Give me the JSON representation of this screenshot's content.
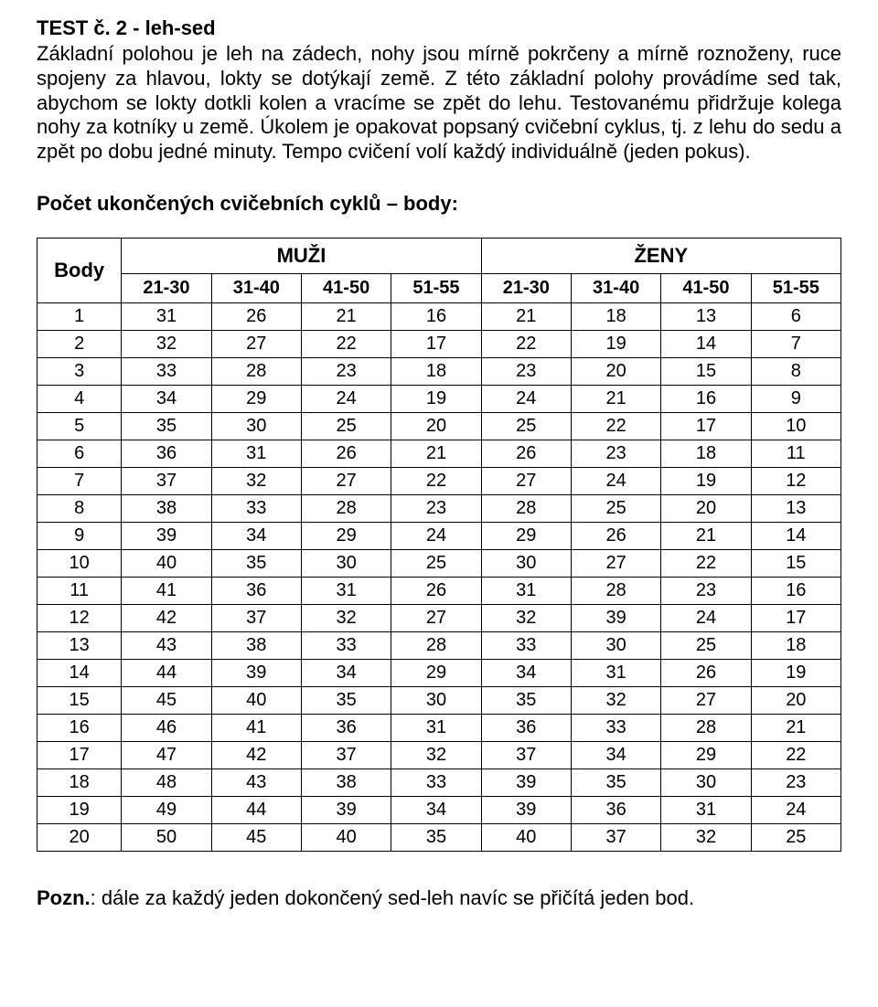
{
  "title": "TEST č. 2 - leh-sed",
  "paragraph": "Základní polohou je leh na zádech, nohy jsou mírně pokrčeny a mírně roznoženy, ruce spojeny za hlavou, lokty se dotýkají země. Z této základní polohy provádíme sed tak, abychom se lokty dotkli kolen a vracíme se zpět do lehu. Testovanému přidržuje kolega nohy za kotníky u země. Úkolem je opakovat popsaný cvičební cyklus, tj. z lehu do sedu a zpět po dobu jedné minuty. Tempo cvičení volí každý individuálně (jeden pokus).",
  "subheading": "Počet ukončených cvičebních cyklů – body:",
  "table": {
    "body_label": "Body",
    "group_headers": [
      "MUŽI",
      "ŽENY"
    ],
    "col_headers": [
      "21-30",
      "31-40",
      "41-50",
      "51-55",
      "21-30",
      "31-40",
      "41-50",
      "51-55"
    ],
    "rows": [
      [
        1,
        31,
        26,
        21,
        16,
        21,
        18,
        13,
        6
      ],
      [
        2,
        32,
        27,
        22,
        17,
        22,
        19,
        14,
        7
      ],
      [
        3,
        33,
        28,
        23,
        18,
        23,
        20,
        15,
        8
      ],
      [
        4,
        34,
        29,
        24,
        19,
        24,
        21,
        16,
        9
      ],
      [
        5,
        35,
        30,
        25,
        20,
        25,
        22,
        17,
        10
      ],
      [
        6,
        36,
        31,
        26,
        21,
        26,
        23,
        18,
        11
      ],
      [
        7,
        37,
        32,
        27,
        22,
        27,
        24,
        19,
        12
      ],
      [
        8,
        38,
        33,
        28,
        23,
        28,
        25,
        20,
        13
      ],
      [
        9,
        39,
        34,
        29,
        24,
        29,
        26,
        21,
        14
      ],
      [
        10,
        40,
        35,
        30,
        25,
        30,
        27,
        22,
        15
      ],
      [
        11,
        41,
        36,
        31,
        26,
        31,
        28,
        23,
        16
      ],
      [
        12,
        42,
        37,
        32,
        27,
        32,
        39,
        24,
        17
      ],
      [
        13,
        43,
        38,
        33,
        28,
        33,
        30,
        25,
        18
      ],
      [
        14,
        44,
        39,
        34,
        29,
        34,
        31,
        26,
        19
      ],
      [
        15,
        45,
        40,
        35,
        30,
        35,
        32,
        27,
        20
      ],
      [
        16,
        46,
        41,
        36,
        31,
        36,
        33,
        28,
        21
      ],
      [
        17,
        47,
        42,
        37,
        32,
        37,
        34,
        29,
        22
      ],
      [
        18,
        48,
        43,
        38,
        33,
        39,
        35,
        30,
        23
      ],
      [
        19,
        49,
        44,
        39,
        34,
        39,
        36,
        31,
        24
      ],
      [
        20,
        50,
        45,
        40,
        35,
        40,
        37,
        32,
        25
      ]
    ]
  },
  "footnote_label": "Pozn.",
  "footnote_text": ": dále za každý jeden dokončený sed-leh navíc se přičítá jeden bod."
}
